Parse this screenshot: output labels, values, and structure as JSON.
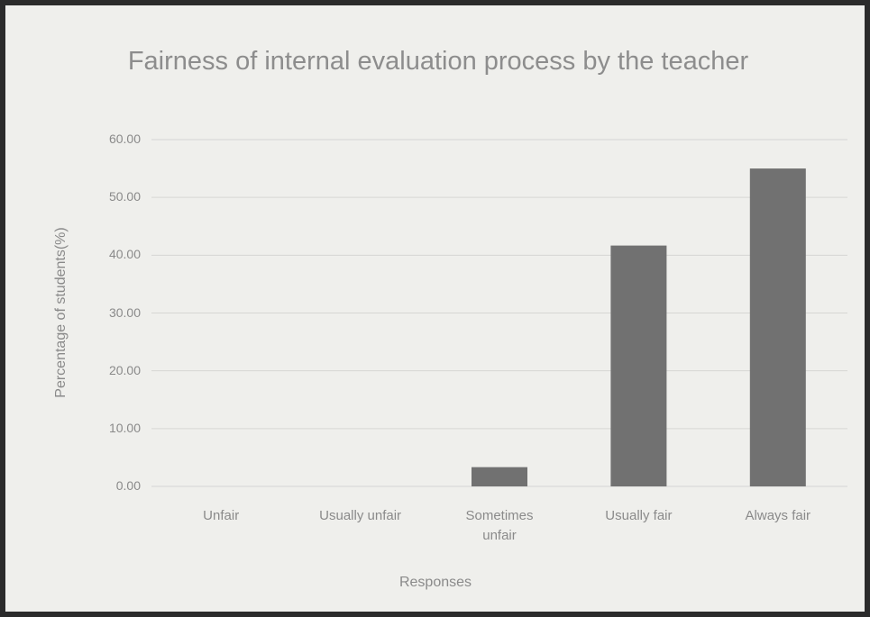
{
  "chart_data": {
    "type": "bar",
    "title": "Fairness of internal evaluation process by the teacher",
    "x_label": "Responses",
    "y_label": "Percentage of students(%)",
    "categories": [
      "Unfair",
      "Usually unfair",
      "Sometimes unfair",
      "Usually fair",
      "Always fair"
    ],
    "values": [
      0,
      0,
      3.33,
      41.67,
      55.0
    ],
    "color": "#717171",
    "ylim": [
      0,
      60
    ],
    "yticks": [
      {
        "value": 0,
        "label": "0.00"
      },
      {
        "value": 10,
        "label": "10.00"
      },
      {
        "value": 20,
        "label": "20.00"
      },
      {
        "value": 30,
        "label": "30.00"
      },
      {
        "value": 40,
        "label": "40.00"
      },
      {
        "value": 50,
        "label": "50.00"
      },
      {
        "value": 60,
        "label": "60.00"
      }
    ],
    "grid": true
  }
}
